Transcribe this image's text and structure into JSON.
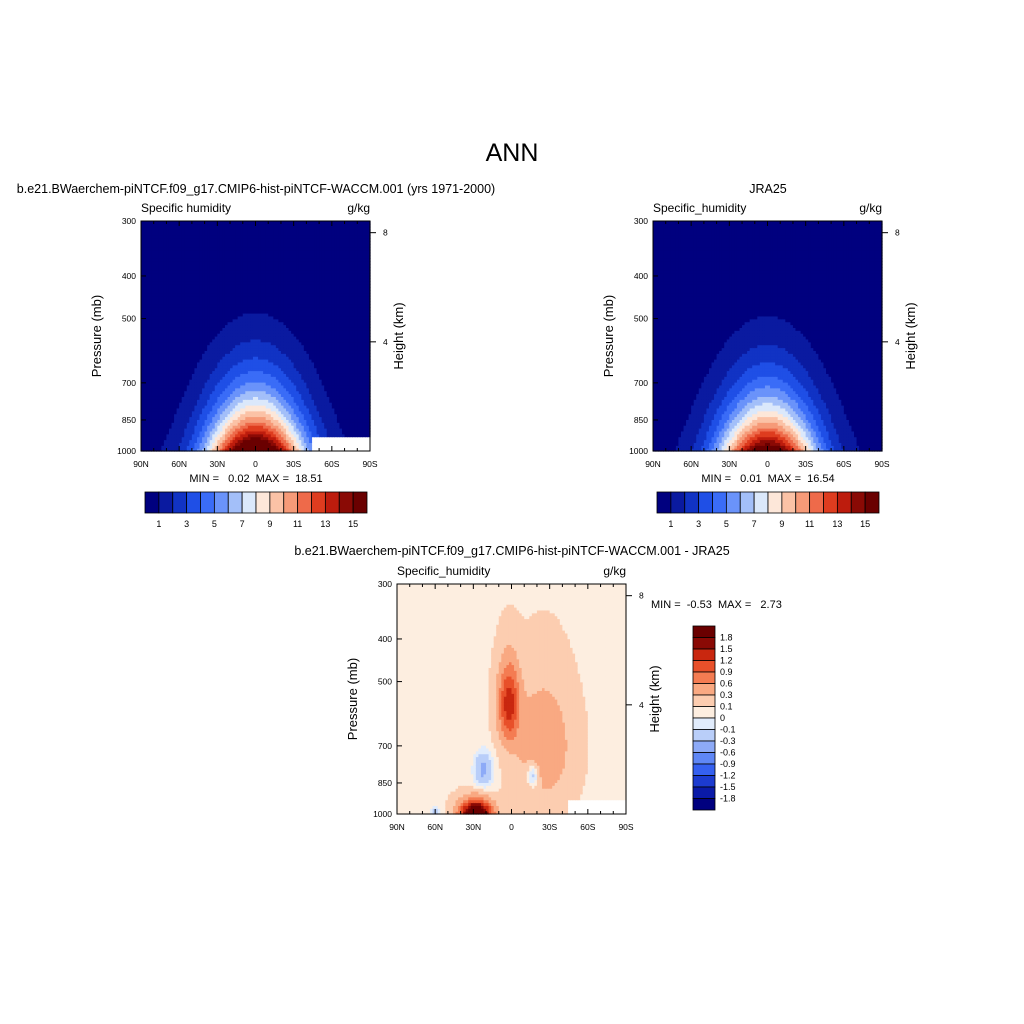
{
  "page": {
    "title": "ANN"
  },
  "chart_data": [
    {
      "type": "heatmap",
      "title": "b.e21.BWaerchem-piNTCF.f09_g17.CMIP6-hist-piNTCF-WACCM.001 (yrs 1971-2000)",
      "left_label": "Specific humidity",
      "units": "g/kg",
      "ylabel": "Pressure (mb)",
      "y2label": "Height (km)",
      "x_ticks": [
        "90N",
        "60N",
        "30N",
        "0",
        "30S",
        "60S",
        "90S"
      ],
      "y_ticks": [
        "300",
        "400",
        "500",
        "700",
        "850",
        "1000"
      ],
      "y2_ticks": [
        "8",
        "4"
      ],
      "x_range": [
        90,
        -90
      ],
      "y_range": [
        1000,
        300
      ],
      "y_scale": "log",
      "field": {
        "peak_value": 18.51,
        "peak_lat": 0,
        "min_value": 0.02,
        "missing_below_1000mb_lat": [
          45,
          90
        ]
      },
      "stats": "MIN =   0.02  MAX =  18.51",
      "colorbar": {
        "orientation": "horizontal",
        "levels": [
          1,
          2,
          3,
          4,
          5,
          6,
          7,
          8,
          9,
          10,
          11,
          12,
          13,
          14,
          15
        ],
        "labels": [
          "1",
          "3",
          "5",
          "7",
          "9",
          "11",
          "13",
          "15"
        ]
      }
    },
    {
      "type": "heatmap",
      "title": "JRA25",
      "left_label": "Specific_humidity",
      "units": "g/kg",
      "ylabel": "Pressure (mb)",
      "y2label": "Height (km)",
      "x_ticks": [
        "90N",
        "60N",
        "30N",
        "0",
        "30S",
        "60S",
        "90S"
      ],
      "y_ticks": [
        "300",
        "400",
        "500",
        "700",
        "850",
        "1000"
      ],
      "y2_ticks": [
        "8",
        "4"
      ],
      "x_range": [
        90,
        -90
      ],
      "y_range": [
        1000,
        300
      ],
      "y_scale": "log",
      "field": {
        "peak_value": 16.54,
        "peak_lat": 0,
        "min_value": 0.01
      },
      "stats": "MIN =   0.01  MAX =  16.54",
      "colorbar": {
        "orientation": "horizontal",
        "levels": [
          1,
          2,
          3,
          4,
          5,
          6,
          7,
          8,
          9,
          10,
          11,
          12,
          13,
          14,
          15
        ],
        "labels": [
          "1",
          "3",
          "5",
          "7",
          "9",
          "11",
          "13",
          "15"
        ]
      }
    },
    {
      "type": "heatmap",
      "title": "b.e21.BWaerchem-piNTCF.f09_g17.CMIP6-hist-piNTCF-WACCM.001 - JRA25",
      "left_label": "Specific_humidity",
      "units": "g/kg",
      "ylabel": "Pressure (mb)",
      "y2label": "Height (km)",
      "x_ticks": [
        "90N",
        "60N",
        "30N",
        "0",
        "30S",
        "60S",
        "90S"
      ],
      "y_ticks": [
        "300",
        "400",
        "500",
        "700",
        "850",
        "1000"
      ],
      "y2_ticks": [
        "8",
        "4"
      ],
      "x_range": [
        90,
        -90
      ],
      "y_range": [
        1000,
        300
      ],
      "y_scale": "log",
      "stats": "MIN =  -0.53  MAX =   2.73",
      "colorbar": {
        "orientation": "vertical",
        "levels": [
          -1.8,
          -1.5,
          -1.2,
          -0.9,
          -0.6,
          -0.3,
          -0.1,
          0,
          0.1,
          0.3,
          0.6,
          0.9,
          1.2,
          1.5,
          1.8
        ],
        "labels": [
          "1.8",
          "1.5",
          "1.2",
          "0.9",
          "0.6",
          "0.3",
          "0.1",
          "0",
          "-0.1",
          "-0.3",
          "-0.6",
          "-0.9",
          "-1.2",
          "-1.5",
          "-1.8"
        ]
      }
    }
  ],
  "colors": {
    "abs_palette": [
      "#00007f",
      "#0a1aa0",
      "#1133c4",
      "#1f4fe6",
      "#3a6cf7",
      "#6a93fa",
      "#a3bff9",
      "#dbe8fb",
      "#fde7d9",
      "#fbc2a6",
      "#f69a78",
      "#ee6a4a",
      "#de3c1f",
      "#bd1c0d",
      "#8a0a05",
      "#6a0000"
    ],
    "diff_palette": [
      "#00007f",
      "#0a1aa8",
      "#1c3bd0",
      "#3560f0",
      "#5f87f6",
      "#8daaf7",
      "#b9cef9",
      "#e1ecfc",
      "#fdeee0",
      "#fccdb0",
      "#f9a982",
      "#f47c52",
      "#e8502a",
      "#c9270f",
      "#8a0a05",
      "#6a0000"
    ]
  }
}
